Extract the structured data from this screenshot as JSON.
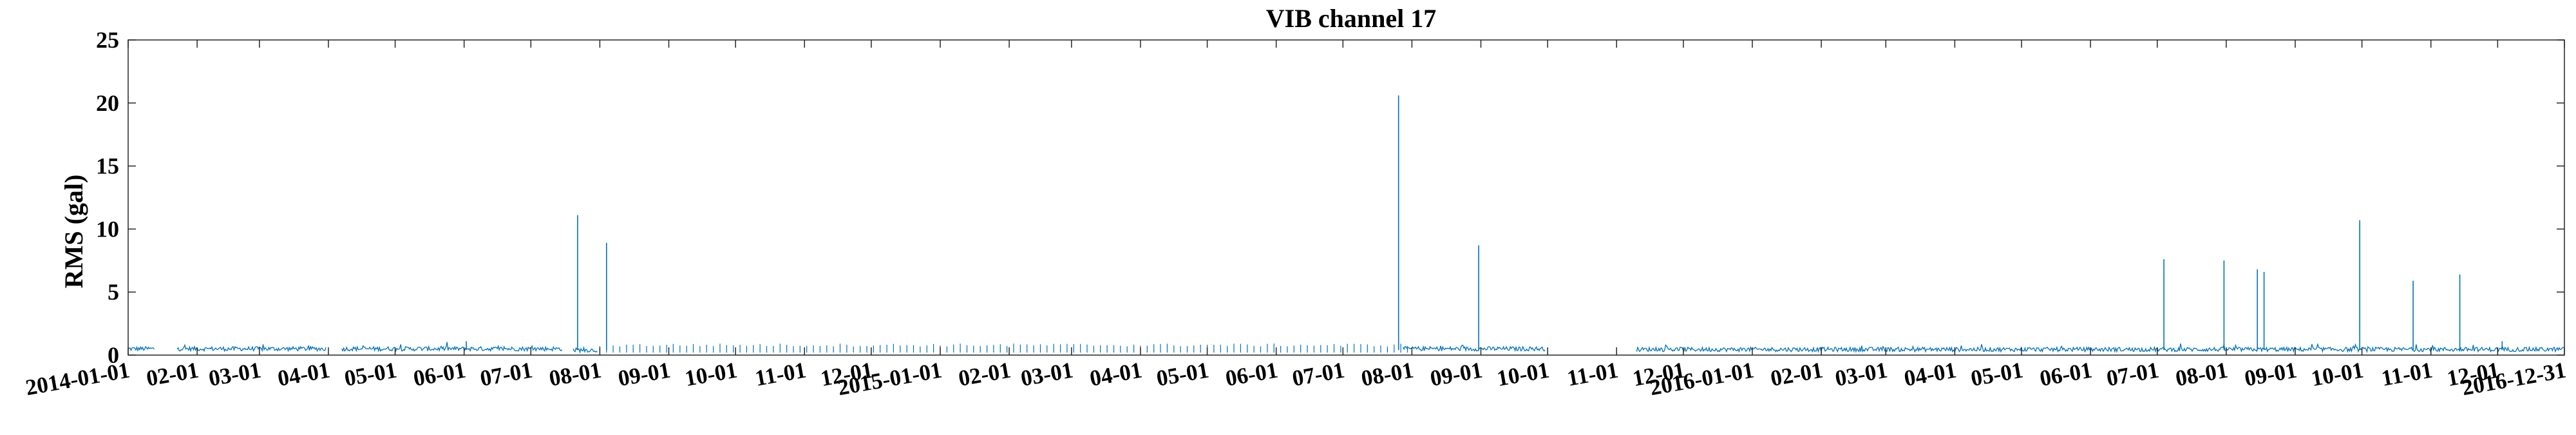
{
  "chart_data": {
    "type": "line",
    "title": "VIB channel 17",
    "xlabel": "",
    "ylabel": "RMS (gal)",
    "xlim": [
      "2014-01-01",
      "2016-12-31"
    ],
    "ylim": [
      0,
      25
    ],
    "yticks": [
      0,
      5,
      10,
      15,
      20,
      25
    ],
    "xticks": [
      {
        "date": "2014-01-01",
        "label": "2014-01-01"
      },
      {
        "date": "2014-02-01",
        "label": "02-01"
      },
      {
        "date": "2014-03-01",
        "label": "03-01"
      },
      {
        "date": "2014-04-01",
        "label": "04-01"
      },
      {
        "date": "2014-05-01",
        "label": "05-01"
      },
      {
        "date": "2014-06-01",
        "label": "06-01"
      },
      {
        "date": "2014-07-01",
        "label": "07-01"
      },
      {
        "date": "2014-08-01",
        "label": "08-01"
      },
      {
        "date": "2014-09-01",
        "label": "09-01"
      },
      {
        "date": "2014-10-01",
        "label": "10-01"
      },
      {
        "date": "2014-11-01",
        "label": "11-01"
      },
      {
        "date": "2014-12-01",
        "label": "12-01"
      },
      {
        "date": "2015-01-01",
        "label": "2015-01-01"
      },
      {
        "date": "2015-02-01",
        "label": "02-01"
      },
      {
        "date": "2015-03-01",
        "label": "03-01"
      },
      {
        "date": "2015-04-01",
        "label": "04-01"
      },
      {
        "date": "2015-05-01",
        "label": "05-01"
      },
      {
        "date": "2015-06-01",
        "label": "06-01"
      },
      {
        "date": "2015-07-01",
        "label": "07-01"
      },
      {
        "date": "2015-08-01",
        "label": "08-01"
      },
      {
        "date": "2015-09-01",
        "label": "09-01"
      },
      {
        "date": "2015-10-01",
        "label": "10-01"
      },
      {
        "date": "2015-11-01",
        "label": "11-01"
      },
      {
        "date": "2015-12-01",
        "label": "12-01"
      },
      {
        "date": "2016-01-01",
        "label": "2016-01-01"
      },
      {
        "date": "2016-02-01",
        "label": "02-01"
      },
      {
        "date": "2016-03-01",
        "label": "03-01"
      },
      {
        "date": "2016-04-01",
        "label": "04-01"
      },
      {
        "date": "2016-05-01",
        "label": "05-01"
      },
      {
        "date": "2016-06-01",
        "label": "06-01"
      },
      {
        "date": "2016-07-01",
        "label": "07-01"
      },
      {
        "date": "2016-08-01",
        "label": "08-01"
      },
      {
        "date": "2016-09-01",
        "label": "09-01"
      },
      {
        "date": "2016-10-01",
        "label": "10-01"
      },
      {
        "date": "2016-11-01",
        "label": "11-01"
      },
      {
        "date": "2016-12-01",
        "label": "12-01"
      },
      {
        "date": "2016-12-31",
        "label": "2016-12-31"
      }
    ],
    "grid": false,
    "legend": "none",
    "line_color": "#0072BD",
    "baseline_segments": [
      {
        "start": "2014-01-01",
        "end": "2014-01-13",
        "rms": 0.5
      },
      {
        "start": "2014-01-23",
        "end": "2014-03-31",
        "rms": 0.5
      },
      {
        "start": "2014-04-07",
        "end": "2014-07-15",
        "rms": 0.5
      },
      {
        "start": "2014-07-20",
        "end": "2014-07-31",
        "rms": 0.4
      },
      {
        "start": "2015-07-28",
        "end": "2015-09-30",
        "rms": 0.5
      },
      {
        "start": "2015-11-10",
        "end": "2016-12-31",
        "rms": 0.45
      }
    ],
    "intermittent_period": {
      "start": "2014-08-01",
      "end": "2015-07-31",
      "interval_days": 3,
      "rms": 0.8
    },
    "spikes": [
      {
        "date": "2014-07-22",
        "rms": 11.1
      },
      {
        "date": "2014-08-04",
        "rms": 8.9
      },
      {
        "date": "2014-06-02",
        "rms": 1.1
      },
      {
        "date": "2015-07-26",
        "rms": 20.6
      },
      {
        "date": "2015-08-31",
        "rms": 8.7
      },
      {
        "date": "2016-07-04",
        "rms": 7.6
      },
      {
        "date": "2016-07-31",
        "rms": 7.5
      },
      {
        "date": "2016-08-15",
        "rms": 6.8
      },
      {
        "date": "2016-08-18",
        "rms": 6.6
      },
      {
        "date": "2016-09-30",
        "rms": 10.7
      },
      {
        "date": "2016-10-24",
        "rms": 5.9
      },
      {
        "date": "2016-11-14",
        "rms": 6.4
      },
      {
        "date": "2016-12-03",
        "rms": 1.1
      }
    ]
  }
}
